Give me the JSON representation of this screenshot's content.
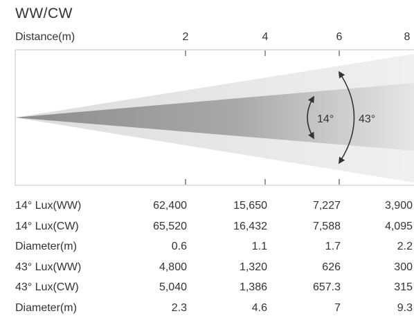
{
  "title": "WW/CW",
  "distance_label": "Distance(m)",
  "distance_ticks": [
    "2",
    "4",
    "6",
    "8"
  ],
  "beam_angles": {
    "narrow": "14°",
    "wide": "43°"
  },
  "table": {
    "rows": [
      {
        "label": "14° Lux(WW)",
        "values": [
          "62,400",
          "15,650",
          "7,227",
          "3,900"
        ]
      },
      {
        "label": "14° Lux(CW)",
        "values": [
          "65,520",
          "16,432",
          "7,588",
          "4,095"
        ]
      },
      {
        "label": "Diameter(m)",
        "values": [
          "0.6",
          "1.1",
          "1.7",
          "2.2"
        ]
      },
      {
        "label": "43° Lux(WW)",
        "values": [
          "4,800",
          "1,320",
          "626",
          "300"
        ]
      },
      {
        "label": "43° Lux(CW)",
        "values": [
          "5,040",
          "1,386",
          "657.3",
          "315"
        ]
      },
      {
        "label": "Diameter(m)",
        "values": [
          "2.3",
          "4.6",
          "7",
          "9.3"
        ]
      }
    ]
  },
  "colors": {
    "narrow_beam": "#9a9a9a",
    "wide_beam": "#e0e0e0",
    "frame": "#d0d0d0",
    "text": "#333333"
  }
}
